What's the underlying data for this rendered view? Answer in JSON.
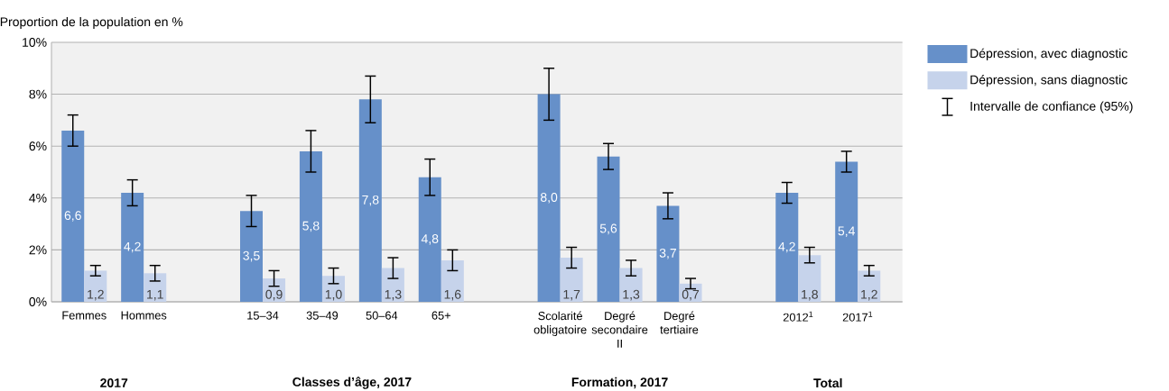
{
  "chart_data": {
    "type": "bar",
    "ylabel": "Proportion de la population en %",
    "categories": [
      "Femmes",
      "Hommes",
      null,
      "15–34",
      "35–49",
      "50–64",
      "65+",
      null,
      "Scolarité obligatoire",
      "Degré secondaire II",
      "Degré tertiaire",
      null,
      "2012$^{1}$",
      "2017$^{1}$"
    ],
    "series": [
      {
        "name": "Dépression, avec diagnostic",
        "color": "#6690c9",
        "values": [
          6.6,
          4.2,
          null,
          3.5,
          5.8,
          7.8,
          4.8,
          null,
          8.0,
          5.6,
          3.7,
          null,
          4.2,
          5.4
        ],
        "value_labels": [
          "6,6",
          "4,2",
          null,
          "3,5",
          "5,8",
          "7,8",
          "4,8",
          null,
          "8,0",
          "5,6",
          "3,7",
          null,
          "4,2",
          "5,4"
        ],
        "errors": [
          [
            6.0,
            7.2
          ],
          [
            3.7,
            4.7
          ],
          null,
          [
            2.9,
            4.1
          ],
          [
            5.0,
            6.6
          ],
          [
            6.9,
            8.7
          ],
          [
            4.1,
            5.5
          ],
          null,
          [
            7.0,
            9.0
          ],
          [
            5.1,
            6.1
          ],
          [
            3.2,
            4.2
          ],
          null,
          [
            3.8,
            4.6
          ],
          [
            5.0,
            5.8
          ]
        ]
      },
      {
        "name": "Dépression, sans diagnostic",
        "color": "#c6d3eb",
        "values": [
          1.2,
          1.1,
          null,
          0.9,
          1.0,
          1.3,
          1.6,
          null,
          1.7,
          1.3,
          0.7,
          null,
          1.8,
          1.2
        ],
        "value_labels": [
          "1,2",
          "1,1",
          null,
          "0,9",
          "1,0",
          "1,3",
          "1,6",
          null,
          "1,7",
          "1,3",
          "0,7",
          null,
          "1,8",
          "1,2"
        ],
        "errors": [
          [
            1.0,
            1.4
          ],
          [
            0.8,
            1.4
          ],
          null,
          [
            0.6,
            1.2
          ],
          [
            0.7,
            1.3
          ],
          [
            0.9,
            1.7
          ],
          [
            1.2,
            2.0
          ],
          null,
          [
            1.3,
            2.1
          ],
          [
            1.0,
            1.6
          ],
          [
            0.5,
            0.9
          ],
          null,
          [
            1.5,
            2.1
          ],
          [
            1.0,
            1.4
          ]
        ]
      }
    ],
    "ylim": [
      0,
      10
    ],
    "yticks": [
      {
        "value": 0,
        "label": "0%"
      },
      {
        "value": 2,
        "label": "2%"
      },
      {
        "value": 4,
        "label": "4%"
      },
      {
        "value": 6,
        "label": "6%"
      },
      {
        "value": 8,
        "label": "8%"
      },
      {
        "value": 10,
        "label": "10%"
      }
    ],
    "grid": "y",
    "legend": "top right",
    "annotations": [
      "Intervalle de confiance (95%)",
      "2017",
      "Classes d’âge, 2017",
      "Formation, 2017",
      "Total"
    ]
  }
}
